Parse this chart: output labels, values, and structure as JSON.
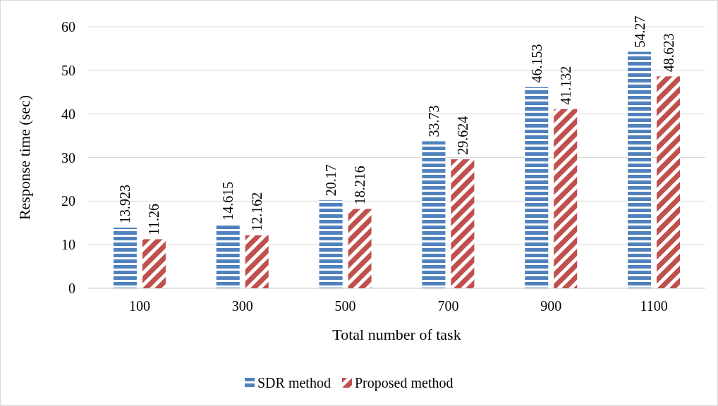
{
  "chart_data": {
    "type": "bar",
    "xlabel": "Total number of task",
    "ylabel": "Response time (sec)",
    "categories": [
      "100",
      "300",
      "500",
      "700",
      "900",
      "1100"
    ],
    "series": [
      {
        "name": "SDR method",
        "color": "#4f81bd",
        "values": [
          13.923,
          14.615,
          20.17,
          33.73,
          46.153,
          54.27
        ],
        "value_labels": [
          "13.923",
          "14.615",
          "20.17",
          "33.73",
          "46.153",
          "54.27"
        ]
      },
      {
        "name": "Proposed method",
        "color": "#c0504d",
        "values": [
          11.26,
          12.162,
          18.216,
          29.624,
          41.132,
          48.623
        ],
        "value_labels": [
          "11.26",
          "12.162",
          "18.216",
          "29.624",
          "41.132",
          "48.623"
        ]
      }
    ],
    "ylim": [
      0,
      60
    ],
    "yticks": [
      0,
      10,
      20,
      30,
      40,
      50,
      60
    ],
    "grid": "y",
    "legend": "bottom"
  }
}
